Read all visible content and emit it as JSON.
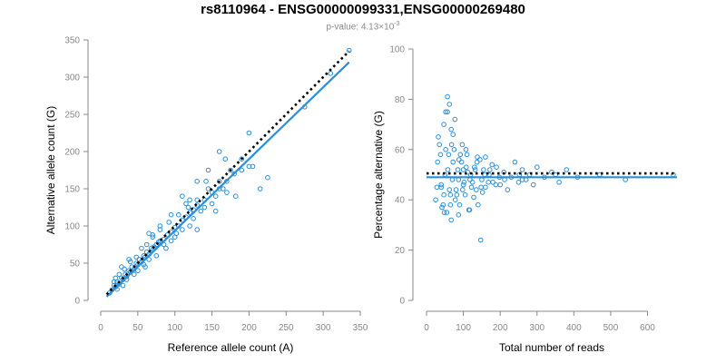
{
  "title": "rs8110964 - ENSG00000099331,ENSG00000269480",
  "subtitle": {
    "prefix": "p-value: 4.13×10",
    "exponent": "-3"
  },
  "colors": {
    "points": "#2a8fd8",
    "fit": "#2a8fd8",
    "reference": "#000000",
    "axis": "#888888"
  },
  "chart_data": [
    {
      "type": "scatter",
      "xlabel": "Reference allele count (A)",
      "ylabel": "Alternative allele count (G)",
      "xlim": [
        0,
        350
      ],
      "ylim": [
        0,
        350
      ],
      "xticks": [
        0,
        50,
        100,
        150,
        200,
        250,
        300,
        350
      ],
      "yticks": [
        0,
        50,
        100,
        150,
        200,
        250,
        300,
        350
      ],
      "grid": false,
      "legend": "none",
      "lines": [
        {
          "kind": "fit",
          "style": "solid",
          "x": [
            8,
            335
          ],
          "y": [
            5,
            320
          ]
        },
        {
          "kind": "reference",
          "style": "dotted",
          "x": [
            8,
            335
          ],
          "y": [
            8,
            335
          ]
        }
      ],
      "points": {
        "x": [
          12,
          15,
          18,
          20,
          22,
          25,
          28,
          30,
          33,
          35,
          38,
          40,
          42,
          45,
          48,
          50,
          52,
          55,
          58,
          60,
          62,
          65,
          68,
          70,
          72,
          75,
          78,
          80,
          85,
          90,
          95,
          100,
          105,
          110,
          115,
          120,
          125,
          130,
          140,
          150,
          160,
          170,
          180,
          190,
          200,
          215,
          225,
          275,
          310,
          335,
          18,
          25,
          32,
          40,
          48,
          55,
          62,
          70,
          80,
          92,
          105,
          118,
          130,
          145,
          160,
          175,
          190,
          205,
          30,
          45,
          60,
          75,
          95,
          110,
          125,
          140,
          155,
          165,
          22,
          35,
          50,
          65,
          85,
          100,
          120,
          135,
          150,
          170,
          110,
          130,
          65,
          80,
          20,
          28,
          38,
          58,
          70,
          88,
          102,
          115,
          130,
          142,
          155,
          168,
          182,
          200,
          145,
          160,
          120,
          95
        ],
        "y": [
          10,
          14,
          20,
          18,
          25,
          22,
          30,
          28,
          35,
          32,
          40,
          38,
          45,
          42,
          50,
          48,
          55,
          52,
          60,
          58,
          65,
          62,
          70,
          68,
          72,
          75,
          78,
          80,
          82,
          88,
          92,
          98,
          100,
          108,
          112,
          118,
          122,
          128,
          135,
          145,
          150,
          160,
          170,
          175,
          180,
          150,
          165,
          260,
          305,
          336,
          25,
          35,
          42,
          52,
          58,
          70,
          75,
          88,
          95,
          105,
          115,
          125,
          135,
          150,
          160,
          175,
          190,
          180,
          20,
          35,
          45,
          60,
          80,
          95,
          110,
          125,
          140,
          150,
          15,
          28,
          40,
          55,
          75,
          85,
          100,
          120,
          130,
          145,
          140,
          160,
          90,
          100,
          30,
          45,
          55,
          48,
          85,
          70,
          90,
          130,
          95,
          160,
          120,
          190,
          140,
          225,
          175,
          200,
          135,
          115
        ]
      }
    },
    {
      "type": "scatter",
      "xlabel": "Total number of reads",
      "ylabel": "Percentage alternative (G)",
      "xlim": [
        0,
        680
      ],
      "ylim": [
        0,
        100
      ],
      "xticks": [
        0,
        100,
        200,
        300,
        400,
        500,
        600
      ],
      "yticks": [
        0,
        20,
        40,
        60,
        80,
        100
      ],
      "grid": false,
      "legend": "none",
      "lines": [
        {
          "kind": "fit",
          "style": "solid",
          "x": [
            0,
            680
          ],
          "y": [
            49,
            49
          ]
        },
        {
          "kind": "reference",
          "style": "dotted",
          "x": [
            0,
            680
          ],
          "y": [
            50.5,
            50.5
          ]
        }
      ],
      "points": {
        "x": [
          25,
          30,
          35,
          40,
          45,
          50,
          55,
          60,
          65,
          70,
          75,
          80,
          85,
          90,
          95,
          100,
          105,
          110,
          115,
          120,
          125,
          130,
          135,
          140,
          145,
          150,
          155,
          160,
          170,
          180,
          190,
          200,
          210,
          220,
          230,
          240,
          250,
          260,
          270,
          280,
          290,
          300,
          320,
          340,
          360,
          380,
          410,
          470,
          540,
          670,
          28,
          38,
          48,
          58,
          68,
          78,
          88,
          98,
          108,
          118,
          128,
          138,
          148,
          158,
          168,
          178,
          188,
          198,
          42,
          52,
          62,
          72,
          82,
          92,
          102,
          112,
          122,
          132,
          32,
          47,
          57,
          67,
          87,
          97,
          117,
          137,
          152,
          172,
          212,
          252,
          62,
          77,
          57,
          67,
          72,
          87,
          52,
          107,
          47,
          147,
          40,
          65,
          100,
          160,
          260,
          350
        ],
        "y": [
          40,
          55,
          62,
          45,
          38,
          50,
          35,
          58,
          42,
          48,
          60,
          44,
          52,
          38,
          55,
          46,
          42,
          58,
          36,
          50,
          47,
          53,
          44,
          38,
          56,
          48,
          52,
          45,
          50,
          47,
          53,
          46,
          51,
          44,
          49,
          55,
          47,
          52,
          48,
          50,
          46,
          53,
          49,
          51,
          47,
          52,
          49,
          50,
          48,
          50,
          45,
          58,
          35,
          52,
          62,
          40,
          56,
          44,
          53,
          48,
          41,
          57,
          45,
          50,
          47,
          54,
          46,
          49,
          37,
          60,
          44,
          55,
          42,
          58,
          47,
          51,
          45,
          52,
          65,
          70,
          75,
          68,
          48,
          62,
          36,
          55,
          43,
          52,
          48,
          50,
          78,
          72,
          81,
          32,
          66,
          34,
          75,
          60,
          42,
          24,
          46,
          38,
          52,
          57,
          48,
          50
        ]
      }
    }
  ]
}
